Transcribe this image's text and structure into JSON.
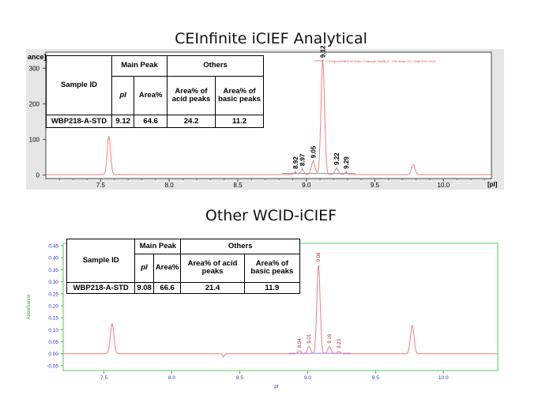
{
  "titles": {
    "top": "CEInfinite iCIEF Analytical",
    "bottom": "Other WCID-iCIEF"
  },
  "chart_data": [
    {
      "type": "line",
      "title": "CEInfinite iCIEF Analytical",
      "xlabel": "pI",
      "xlabel_display": "[pI]",
      "ylabel_fragment": "ance]",
      "xlim": [
        7.1,
        10.35
      ],
      "ylim": [
        -10,
        345
      ],
      "x_ticks": [
        7.5,
        8.0,
        8.5,
        9.0,
        9.5,
        10.0
      ],
      "x_tick_labels": [
        "7.5",
        "8.0",
        "8.5",
        "9.0",
        "9.5",
        "10.0"
      ],
      "y_ticks": [
        0,
        100,
        200,
        300
      ],
      "y_tick_labels": [
        "0",
        "100",
        "200",
        "300"
      ],
      "legend_text": "C:\\Project\\WBP218\\218A-C\\Sample-Vial3B-2 - CEInfinite-CE1 SN#CE01-0119",
      "line_color": "#f08080",
      "baseline": 1,
      "peaks": [
        {
          "x": 7.56,
          "y": 108,
          "width": 0.012
        },
        {
          "x": 8.92,
          "y": 6,
          "width": 0.012
        },
        {
          "x": 8.97,
          "y": 14,
          "width": 0.012
        },
        {
          "x": 9.05,
          "y": 36,
          "width": 0.014
        },
        {
          "x": 9.12,
          "y": 318,
          "width": 0.013
        },
        {
          "x": 9.22,
          "y": 17,
          "width": 0.013
        },
        {
          "x": 9.29,
          "y": 6,
          "width": 0.012
        },
        {
          "x": 9.78,
          "y": 28,
          "width": 0.013
        }
      ],
      "peak_labels": [
        {
          "text": "8.92",
          "x": 8.92,
          "y": 6
        },
        {
          "text": "8.97",
          "x": 8.97,
          "y": 14
        },
        {
          "text": "9.05",
          "x": 9.05,
          "y": 36
        },
        {
          "text": "9.12",
          "x": 9.12,
          "y": 318
        },
        {
          "text": "9.22",
          "x": 9.22,
          "y": 17
        },
        {
          "text": "9.29",
          "x": 9.29,
          "y": 6
        }
      ],
      "grid": false
    },
    {
      "type": "line",
      "title": "Other WCID-iCIEF",
      "xlabel": "pI",
      "ylabel": "Absorbance",
      "xlim": [
        7.2,
        10.4
      ],
      "ylim": [
        -0.07,
        0.46
      ],
      "x_ticks": [
        7.5,
        8.0,
        8.5,
        9.0,
        9.5,
        10.0
      ],
      "x_tick_labels": [
        "7.5",
        "8.0",
        "8.5",
        "9.0",
        "9.5",
        "10.0"
      ],
      "y_ticks": [
        -0.05,
        0.0,
        0.05,
        0.1,
        0.15,
        0.2,
        0.25,
        0.3,
        0.35,
        0.4,
        0.45
      ],
      "y_tick_labels": [
        "-0.05",
        "0.00",
        "0.05",
        "0.10",
        "0.15",
        "0.20",
        "0.25",
        "0.30",
        "0.35",
        "0.40",
        "0.45"
      ],
      "line_color": "#f08080",
      "baseline": 0.0,
      "dip": {
        "x": 8.38,
        "y": -0.015
      },
      "peaks": [
        {
          "x": 7.56,
          "y": 0.125,
          "width": 0.013
        },
        {
          "x": 8.94,
          "y": 0.012,
          "width": 0.012
        },
        {
          "x": 9.01,
          "y": 0.03,
          "width": 0.012
        },
        {
          "x": 9.08,
          "y": 0.37,
          "width": 0.012
        },
        {
          "x": 9.16,
          "y": 0.03,
          "width": 0.012
        },
        {
          "x": 9.23,
          "y": 0.01,
          "width": 0.012
        },
        {
          "x": 9.77,
          "y": 0.118,
          "width": 0.013
        }
      ],
      "peak_labels": [
        {
          "text": "8.94",
          "x": 8.94,
          "y": 0.012
        },
        {
          "text": "9.01",
          "x": 9.01,
          "y": 0.03
        },
        {
          "text": "9.08",
          "x": 9.08,
          "y": 0.37
        },
        {
          "text": "9.16",
          "x": 9.16,
          "y": 0.03
        },
        {
          "text": "9.23",
          "x": 9.23,
          "y": 0.01
        }
      ],
      "grid": false
    }
  ],
  "tables": [
    {
      "headers": {
        "sample_id": "Sample ID",
        "main_peak": "Main Peak",
        "others": "Others",
        "pi": "pI",
        "area": "Area%",
        "acid": "Area% of acid peaks",
        "basic": "Area% of basic peaks"
      },
      "row": {
        "sample": "WBP218-A-STD",
        "pi": "9.12",
        "area": "64.6",
        "acid": "24.2",
        "basic": "11.2"
      }
    },
    {
      "headers": {
        "sample_id": "Sample ID",
        "main_peak": "Main Peak",
        "others": "Others",
        "pi": "pI",
        "area": "Area%",
        "acid": "Area% of acid peaks",
        "basic": "Area% of basic peaks"
      },
      "row": {
        "sample": "WBP218-A-STD",
        "pi": "9.08",
        "area": "66.6",
        "acid": "21.4",
        "basic": "11.9"
      }
    }
  ]
}
